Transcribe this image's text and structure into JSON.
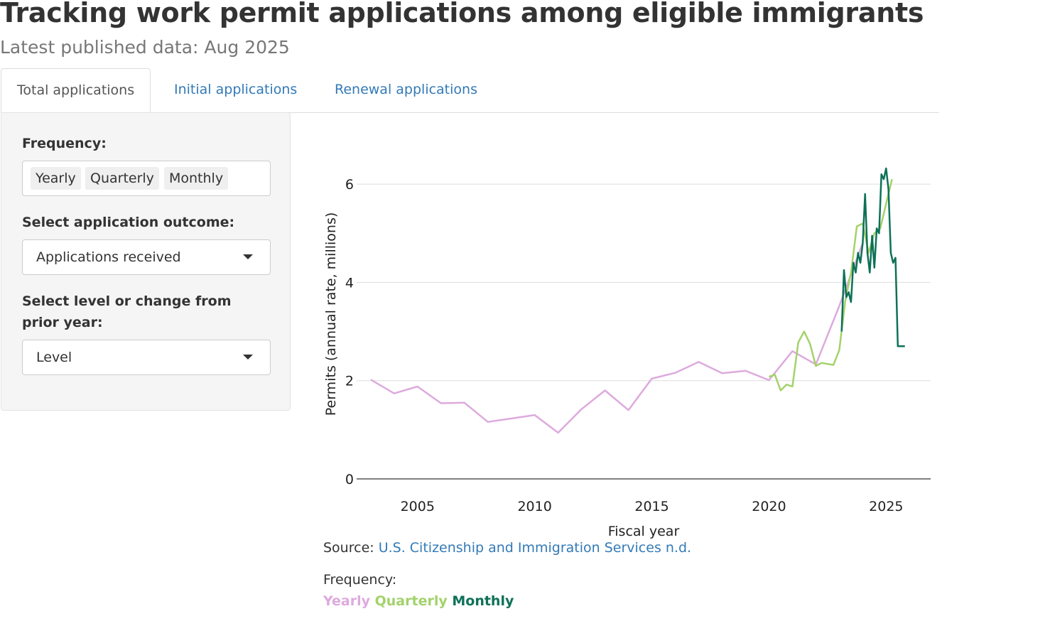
{
  "header": {
    "title": "Tracking work permit applications among eligible immigrants",
    "subtitle": "Latest published data: Aug 2025"
  },
  "tabs": [
    {
      "label": "Total applications",
      "active": true
    },
    {
      "label": "Initial applications",
      "active": false
    },
    {
      "label": "Renewal applications",
      "active": false
    }
  ],
  "controls": {
    "frequency": {
      "label": "Frequency:",
      "options": [
        "Yearly",
        "Quarterly",
        "Monthly"
      ]
    },
    "outcome": {
      "label": "Select application outcome:",
      "value": "Applications received"
    },
    "level": {
      "label": "Select level or change from prior year:",
      "value": "Level"
    }
  },
  "colors": {
    "yearly": "#ddaadd",
    "quarterly": "#a3d26b",
    "monthly": "#0e7157",
    "link": "#337ab7"
  },
  "chart_data": {
    "type": "line",
    "title": "",
    "xlabel": "Fiscal year",
    "ylabel": "Permits (annual rate, millions)",
    "xlim": [
      2002.4,
      2026.9
    ],
    "ylim": [
      0,
      7
    ],
    "xticks": [
      2005,
      2010,
      2015,
      2020,
      2025
    ],
    "yticks": [
      0,
      2,
      4,
      6
    ],
    "grid": true,
    "series": [
      {
        "name": "Yearly",
        "color": "#ddaadd",
        "x": [
          2003,
          2004,
          2005,
          2006,
          2007,
          2008,
          2009,
          2010,
          2011,
          2012,
          2013,
          2014,
          2015,
          2016,
          2017,
          2018,
          2019,
          2020,
          2021,
          2022,
          2023,
          2024
        ],
        "y": [
          2.02,
          1.74,
          1.88,
          1.54,
          1.55,
          1.16,
          1.23,
          1.3,
          0.94,
          1.42,
          1.8,
          1.4,
          2.04,
          2.16,
          2.38,
          2.15,
          2.2,
          2.01,
          2.6,
          2.33,
          3.52,
          4.8
        ]
      },
      {
        "name": "Quarterly",
        "color": "#a3d26b",
        "x": [
          2020.0,
          2020.25,
          2020.5,
          2020.75,
          2021.0,
          2021.25,
          2021.5,
          2021.75,
          2022.0,
          2022.25,
          2022.5,
          2022.75,
          2023.0,
          2023.25,
          2023.5,
          2023.75,
          2024.0,
          2024.25,
          2024.5,
          2024.75,
          2025.0,
          2025.25
        ],
        "y": [
          2.08,
          2.12,
          1.8,
          1.92,
          1.88,
          2.78,
          3.0,
          2.75,
          2.3,
          2.36,
          2.34,
          2.32,
          2.62,
          3.6,
          4.2,
          5.14,
          5.2,
          4.6,
          5.0,
          5.1,
          5.6,
          6.1
        ]
      },
      {
        "name": "Monthly",
        "color": "#0e7157",
        "x": [
          2023.1,
          2023.2,
          2023.3,
          2023.4,
          2023.5,
          2023.6,
          2023.7,
          2023.8,
          2023.9,
          2024.0,
          2024.1,
          2024.2,
          2024.3,
          2024.4,
          2024.5,
          2024.6,
          2024.7,
          2024.8,
          2024.9,
          2025.0,
          2025.1,
          2025.2,
          2025.3,
          2025.4,
          2025.5,
          2025.6,
          2025.7,
          2025.8
        ],
        "y": [
          3.0,
          4.25,
          3.7,
          3.8,
          3.6,
          4.4,
          4.2,
          4.6,
          4.4,
          4.8,
          5.8,
          4.6,
          4.2,
          4.95,
          4.3,
          5.1,
          5.0,
          6.2,
          6.1,
          6.32,
          5.9,
          4.6,
          4.4,
          4.5,
          2.7,
          2.7,
          2.7,
          2.7
        ]
      }
    ]
  },
  "footer": {
    "source_prefix": "Source: ",
    "source_link": "U.S. Citizenship and Immigration Services n.d.",
    "legend_title": "Frequency:",
    "legend": [
      "Yearly",
      "Quarterly",
      "Monthly"
    ]
  }
}
